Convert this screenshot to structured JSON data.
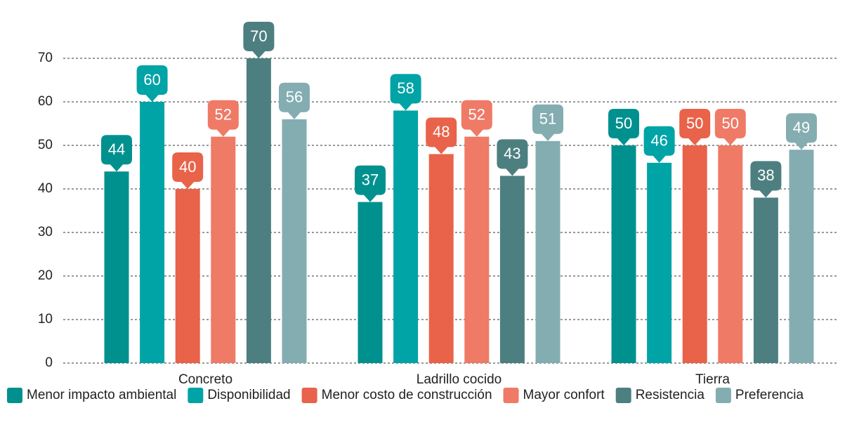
{
  "chart_data": {
    "type": "bar",
    "categories": [
      "Concreto",
      "Ladrillo cocido",
      "Tierra"
    ],
    "series": [
      {
        "name": "Menor impacto ambiental",
        "color": "#00918f",
        "values": [
          44,
          37,
          50
        ]
      },
      {
        "name": "Disponibilidad",
        "color": "#00a3a6",
        "values": [
          60,
          58,
          46
        ]
      },
      {
        "name": "Menor costo de construcción",
        "color": "#e8634a",
        "values": [
          40,
          48,
          50
        ]
      },
      {
        "name": "Mayor confort",
        "color": "#ef7a66",
        "values": [
          52,
          52,
          50
        ]
      },
      {
        "name": "Resistencia",
        "color": "#4d7f80",
        "values": [
          70,
          43,
          38
        ]
      },
      {
        "name": "Preferencia",
        "color": "#84adb1",
        "values": [
          56,
          51,
          49
        ]
      }
    ],
    "ylim": [
      0,
      70
    ],
    "yticks": [
      0,
      10,
      20,
      30,
      40,
      50,
      60,
      70
    ],
    "grid": true,
    "legend": "bottom"
  }
}
